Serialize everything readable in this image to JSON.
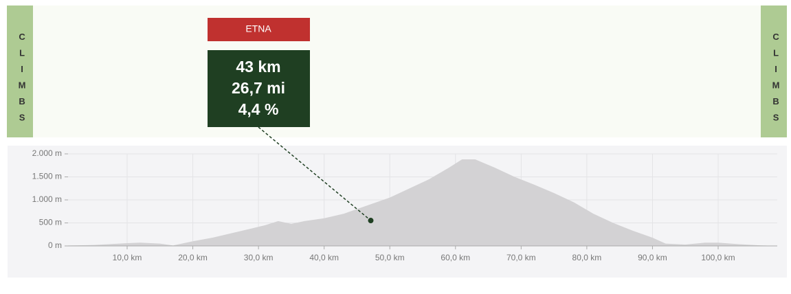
{
  "sidebar_label": "CLIMBS",
  "climb": {
    "name": "ETNA",
    "lines": [
      "43 km",
      "26,7 mi",
      "4,4 %"
    ]
  },
  "chart_data": {
    "type": "area",
    "x": [
      1,
      5,
      10,
      12,
      15,
      17,
      20,
      23,
      26,
      29,
      31,
      33,
      35,
      37,
      40,
      43,
      46,
      50,
      53,
      56,
      59,
      61,
      63,
      66,
      69,
      72,
      75,
      78,
      81,
      84,
      87,
      90,
      92,
      95,
      98,
      100,
      103,
      106,
      109
    ],
    "values": [
      10,
      20,
      60,
      70,
      50,
      10,
      100,
      180,
      280,
      380,
      450,
      540,
      480,
      540,
      600,
      700,
      850,
      1050,
      1250,
      1450,
      1700,
      1880,
      1880,
      1700,
      1500,
      1330,
      1150,
      950,
      700,
      500,
      330,
      180,
      50,
      30,
      70,
      70,
      40,
      15,
      0
    ],
    "color": "#d3d2d4",
    "xlim": [
      1,
      109
    ],
    "ylim": [
      0,
      2000
    ],
    "xticks": [
      {
        "value": 10,
        "label": "10,0 km"
      },
      {
        "value": 20,
        "label": "20,0 km"
      },
      {
        "value": 30,
        "label": "30,0 km"
      },
      {
        "value": 40,
        "label": "40,0 km"
      },
      {
        "value": 50,
        "label": "50,0 km"
      },
      {
        "value": 60,
        "label": "60,0 km"
      },
      {
        "value": 70,
        "label": "70,0 km"
      },
      {
        "value": 80,
        "label": "80,0 km"
      },
      {
        "value": 90,
        "label": "90,0 km"
      },
      {
        "value": 100,
        "label": "100,0 km"
      }
    ],
    "yticks": [
      {
        "value": 0,
        "label": "0 m"
      },
      {
        "value": 500,
        "label": "500 m"
      },
      {
        "value": 1000,
        "label": "1.000 m"
      },
      {
        "value": 1500,
        "label": "1.500 m"
      },
      {
        "value": 2000,
        "label": "2.000 m"
      }
    ],
    "grid": true,
    "marker": {
      "x": 47.1,
      "y": 552,
      "color": "#1f3f22"
    }
  }
}
